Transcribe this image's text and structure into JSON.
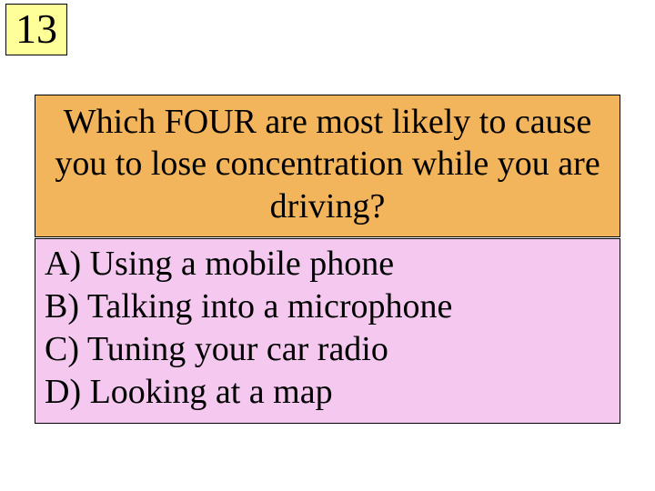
{
  "colors": {
    "number_bg": "#ffff99",
    "question_bg": "#f2b55c",
    "answers_bg": "#f4c8ef",
    "border": "#000000",
    "text": "#000000",
    "page_bg": "#ffffff"
  },
  "typography": {
    "font_family": "Times New Roman",
    "number_fontsize_pt": 34,
    "question_fontsize_pt": 28,
    "answers_fontsize_pt": 28
  },
  "number": "13",
  "question": "Which FOUR are most likely to cause you to lose concentration while you are driving?",
  "answers": [
    "A) Using a mobile phone",
    "B) Talking into a microphone",
    "C) Tuning your car radio",
    "D) Looking at a map"
  ]
}
